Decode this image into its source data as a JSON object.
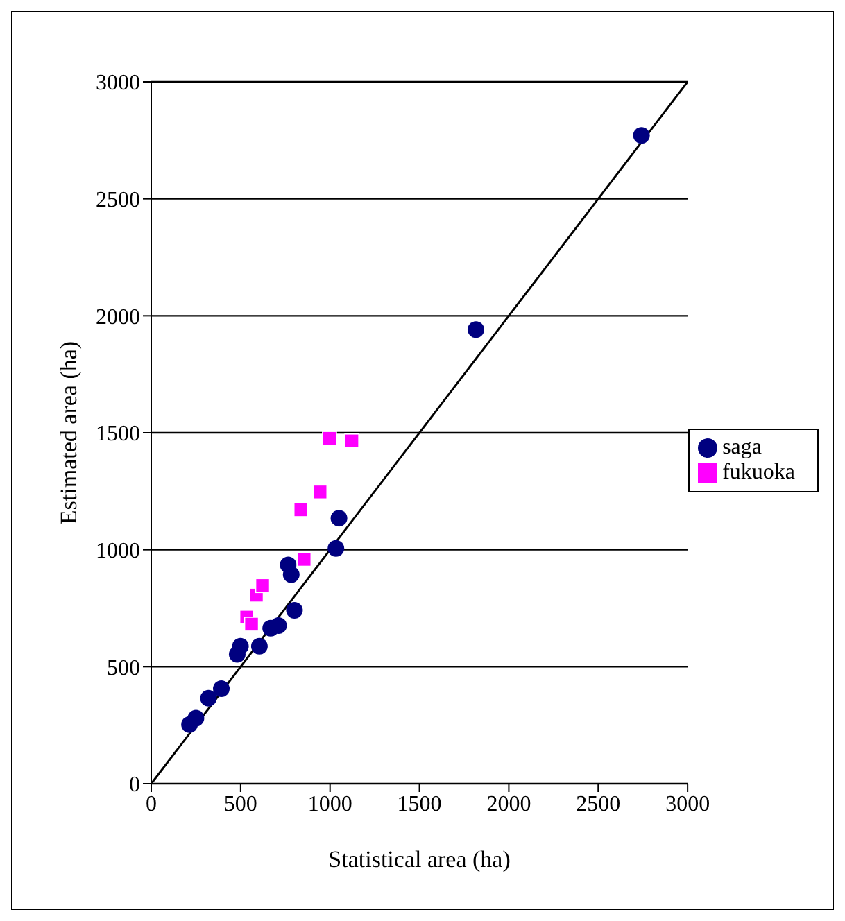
{
  "chart_data": {
    "type": "scatter",
    "xlabel": "Statistical area (ha)",
    "ylabel": "Estimated area (ha)",
    "xlim": [
      0,
      3000
    ],
    "xticks": [
      0,
      500,
      1000,
      1500,
      2000,
      2500,
      3000
    ],
    "ylim": [
      0,
      3000
    ],
    "yticks": [
      0,
      500,
      1000,
      1500,
      2000,
      2500,
      3000
    ],
    "grid": "y",
    "legend": "right",
    "series": [
      {
        "name": "saga",
        "color": "#000080",
        "marker": "circle",
        "x": [
          214,
          250,
          320,
          392,
          481,
          499,
          605,
          668,
          712,
          801,
          766,
          783,
          1033,
          1050,
          1816,
          2742
        ],
        "values": [
          253,
          280,
          365,
          406,
          553,
          588,
          588,
          665,
          676,
          741,
          935,
          894,
          1006,
          1135,
          1941,
          2771
        ]
      },
      {
        "name": "fukuoka",
        "color": "#ff00ff",
        "marker": "square",
        "x": [
          534,
          561,
          588,
          623,
          855,
          837,
          944,
          997,
          1122
        ],
        "values": [
          712,
          682,
          806,
          847,
          959,
          1171,
          1247,
          1476,
          1465
        ]
      },
      {
        "type": "line",
        "color": "#000000",
        "marker": "none",
        "x": [
          0,
          3000
        ],
        "values": [
          0,
          3000
        ]
      }
    ]
  }
}
